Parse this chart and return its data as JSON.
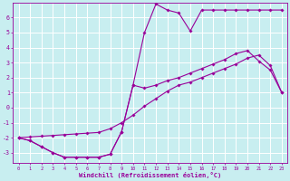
{
  "bg_color": "#c8eef0",
  "grid_color": "#ffffff",
  "line_color": "#990099",
  "xlabel": "Windchill (Refroidissement éolien,°C)",
  "xlim": [
    -0.5,
    23.5
  ],
  "ylim": [
    -3.7,
    7.0
  ],
  "xticks": [
    0,
    1,
    2,
    3,
    4,
    5,
    6,
    7,
    8,
    9,
    10,
    11,
    12,
    13,
    14,
    15,
    16,
    17,
    18,
    19,
    20,
    21,
    22,
    23
  ],
  "yticks": [
    -3,
    -2,
    -1,
    0,
    1,
    2,
    3,
    4,
    5,
    6
  ],
  "line1_x": [
    0,
    1,
    2,
    3,
    4,
    5,
    6,
    7,
    8,
    9,
    10,
    11,
    12,
    13,
    14,
    15,
    16,
    17,
    18,
    19,
    20,
    21,
    22,
    23
  ],
  "line1_y": [
    -2.0,
    -2.2,
    -2.6,
    -3.0,
    -3.3,
    -3.3,
    -3.3,
    -3.3,
    -3.1,
    -1.6,
    1.5,
    5.0,
    6.9,
    6.5,
    6.3,
    5.1,
    6.5,
    6.5,
    6.5,
    6.5,
    6.5,
    6.5,
    6.5,
    6.5
  ],
  "line2_x": [
    0,
    1,
    2,
    3,
    4,
    5,
    6,
    7,
    8,
    9,
    10,
    11,
    12,
    13,
    14,
    15,
    16,
    17,
    18,
    19,
    20,
    21,
    22,
    23
  ],
  "line2_y": [
    -2.0,
    -1.95,
    -1.9,
    -1.85,
    -1.8,
    -1.75,
    -1.7,
    -1.65,
    -1.4,
    -1.0,
    -0.5,
    0.1,
    0.6,
    1.1,
    1.5,
    1.7,
    2.0,
    2.3,
    2.6,
    2.9,
    3.3,
    3.5,
    2.8,
    1.0
  ],
  "line3_x": [
    0,
    1,
    2,
    3,
    4,
    5,
    6,
    7,
    8,
    9,
    10,
    11,
    12,
    13,
    14,
    15,
    16,
    17,
    18,
    19,
    20,
    21,
    22,
    23
  ],
  "line3_y": [
    -2.0,
    -2.2,
    -2.6,
    -3.0,
    -3.3,
    -3.3,
    -3.3,
    -3.3,
    -3.1,
    -1.6,
    1.5,
    1.3,
    1.5,
    1.8,
    2.0,
    2.3,
    2.6,
    2.9,
    3.2,
    3.6,
    3.8,
    3.1,
    2.5,
    1.0
  ]
}
